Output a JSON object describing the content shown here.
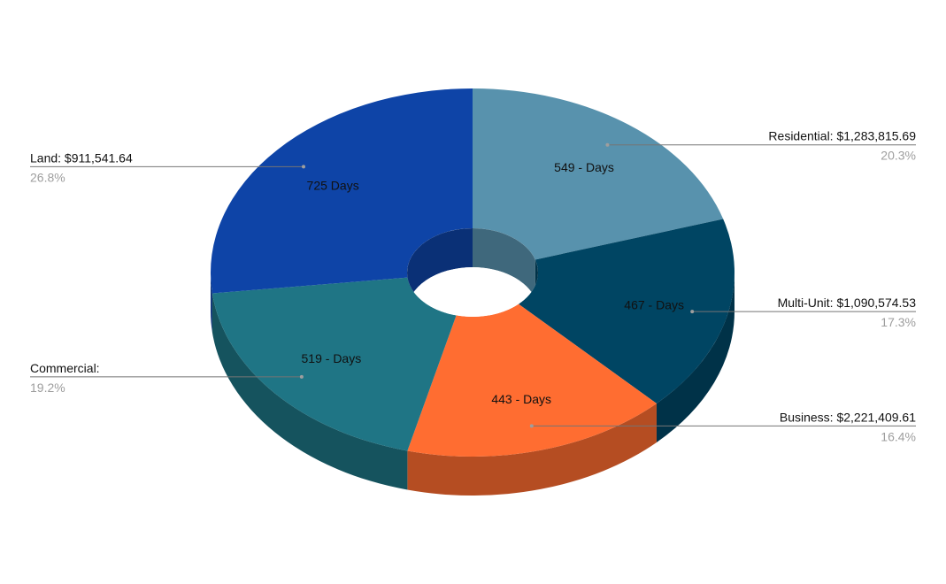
{
  "chart_data": {
    "type": "pie",
    "style": "3d-donut",
    "series": [
      {
        "category": "Residential: $1,283,815.69",
        "percent": 20.3,
        "percent_label": "20.3%",
        "slice_label": "549 - Days",
        "color": "#5892ad",
        "side_color": "#3f687c"
      },
      {
        "category": "Multi-Unit: $1,090,574.53",
        "percent": 17.3,
        "percent_label": "17.3%",
        "slice_label": "467 - Days",
        "color": "#004563",
        "side_color": "#003248"
      },
      {
        "category": "Business: $2,221,409.61",
        "percent": 16.4,
        "percent_label": "16.4%",
        "slice_label": "443 - Days",
        "color": "#ff6d31",
        "side_color": "#b54d22"
      },
      {
        "category": "Commercial:",
        "percent": 19.2,
        "percent_label": "19.2%",
        "slice_label": "519 - Days",
        "color": "#1f7585",
        "side_color": "#15535e"
      },
      {
        "category": "Land: $911,541.64",
        "percent": 26.8,
        "percent_label": "26.8%",
        "slice_label": "725 Days",
        "color": "#0e44a7",
        "side_color": "#0a3076"
      }
    ]
  }
}
